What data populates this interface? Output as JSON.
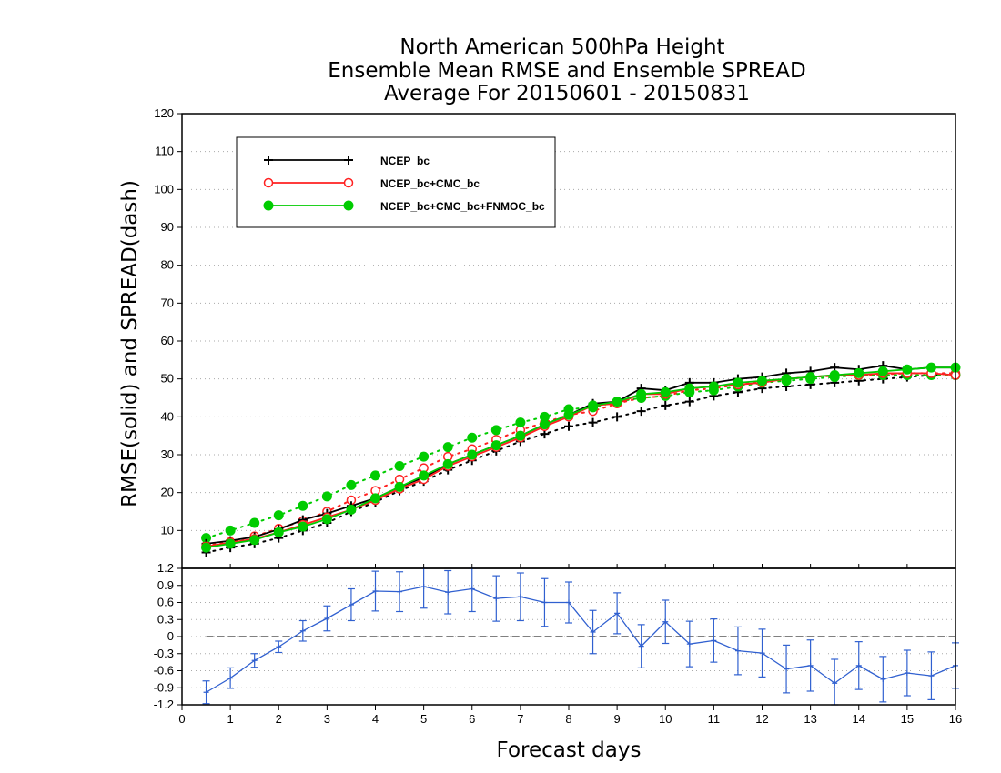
{
  "chart_data": [
    {
      "type": "line",
      "title_lines": [
        "North American 500hPa Height",
        "Ensemble Mean RMSE and Ensemble SPREAD",
        "Average For 20150601 - 20150831"
      ],
      "ylabel": "RMSE(solid) and SPREAD(dash)",
      "xlabel": "Forecast days",
      "xlim": [
        0,
        16
      ],
      "ylim": [
        0,
        120
      ],
      "yticks": [
        "10",
        "20",
        "30",
        "40",
        "50",
        "60",
        "70",
        "80",
        "90",
        "100",
        "110",
        "120"
      ],
      "grid": true,
      "legend_position": "top-left",
      "x": [
        0.5,
        1,
        1.5,
        2,
        2.5,
        3,
        3.5,
        4,
        4.5,
        5,
        5.5,
        6,
        6.5,
        7,
        7.5,
        8,
        8.5,
        9,
        9.5,
        10,
        10.5,
        11,
        11.5,
        12,
        12.5,
        13,
        13.5,
        14,
        14.5,
        15,
        15.5,
        16
      ],
      "series": [
        {
          "name": "NCEP_bc",
          "color": "#000000",
          "marker": "plus",
          "rmse": [
            6.5,
            7.3,
            8.3,
            10.3,
            12.8,
            14.5,
            16.5,
            18.5,
            21.5,
            24.0,
            27.5,
            30.0,
            32.5,
            35.0,
            38.0,
            40.5,
            43.5,
            44.0,
            47.5,
            47.0,
            49.0,
            49.0,
            50.0,
            50.5,
            51.5,
            52.0,
            53.0,
            52.5,
            53.5,
            52.5,
            53.0,
            53.0
          ],
          "spread": [
            4.2,
            5.5,
            6.5,
            8.0,
            10.0,
            12.0,
            15.0,
            17.5,
            20.5,
            23.0,
            26.0,
            28.5,
            31.0,
            33.5,
            35.5,
            37.5,
            38.5,
            40.0,
            41.5,
            43.0,
            44.0,
            45.5,
            46.5,
            47.5,
            48.0,
            48.5,
            49.0,
            49.5,
            50.0,
            50.5,
            51.0,
            51.5
          ]
        },
        {
          "name": "NCEP_bc+CMC_bc",
          "color": "#ff2020",
          "marker": "open-circle",
          "rmse": [
            5.8,
            6.8,
            7.8,
            9.5,
            11.5,
            13.5,
            15.5,
            18.0,
            21.0,
            23.5,
            27.0,
            29.5,
            32.0,
            34.5,
            37.5,
            40.0,
            43.0,
            43.5,
            46.0,
            46.0,
            47.5,
            48.0,
            48.5,
            49.0,
            50.0,
            50.5,
            51.0,
            51.0,
            51.5,
            51.5,
            51.5,
            51.0
          ],
          "spread": [
            6.0,
            7.0,
            8.5,
            10.5,
            12.5,
            15.0,
            18.0,
            20.5,
            23.5,
            26.5,
            29.5,
            31.5,
            34.0,
            36.5,
            38.5,
            40.5,
            41.5,
            43.5,
            45.0,
            45.5,
            47.0,
            47.5,
            48.5,
            49.5,
            50.0,
            50.5,
            50.8,
            51.0,
            51.2,
            51.5,
            51.5,
            51.5
          ]
        },
        {
          "name": "NCEP_bc+CMC_bc+FNMOC_bc",
          "color": "#00cc00",
          "marker": "filled-circle",
          "rmse": [
            5.5,
            6.5,
            7.5,
            9.5,
            11.0,
            13.0,
            15.5,
            18.5,
            21.5,
            24.5,
            27.5,
            30.0,
            32.5,
            35.0,
            38.0,
            40.5,
            43.0,
            44.0,
            46.0,
            46.5,
            47.5,
            48.0,
            49.0,
            49.5,
            50.0,
            50.5,
            51.0,
            51.5,
            52.0,
            52.5,
            53.0,
            53.0
          ],
          "spread": [
            8.0,
            10.0,
            12.0,
            14.0,
            16.5,
            19.0,
            22.0,
            24.5,
            27.0,
            29.5,
            32.0,
            34.5,
            36.5,
            38.5,
            40.0,
            42.0,
            42.5,
            44.0,
            45.0,
            45.5,
            46.5,
            47.0,
            48.0,
            49.0,
            49.5,
            50.0,
            50.5,
            51.0,
            51.0,
            51.0,
            51.0,
            51.0
          ]
        }
      ],
      "legend": [
        "NCEP_bc",
        "NCEP_bc+CMC_bc",
        "NCEP_bc+CMC_bc+FNMOC_bc"
      ]
    },
    {
      "type": "line",
      "xlim": [
        0,
        16
      ],
      "ylim": [
        -1.2,
        1.2
      ],
      "xticks": [
        "0",
        "1",
        "2",
        "3",
        "4",
        "5",
        "6",
        "7",
        "8",
        "9",
        "10",
        "11",
        "12",
        "13",
        "14",
        "15",
        "16"
      ],
      "yticks": [
        "1.2",
        "0.9",
        "0.6",
        "0.3",
        "0",
        "-0.3",
        "-0.6",
        "-0.9",
        "-1.2"
      ],
      "ytick_values": [
        1.2,
        0.9,
        0.6,
        0.3,
        0,
        -0.3,
        -0.6,
        -0.9,
        -1.2
      ],
      "grid": true,
      "series": [
        {
          "color": "#3060d0",
          "x": [
            0.5,
            1,
            1.5,
            2,
            2.5,
            3,
            3.5,
            4,
            4.5,
            5,
            5.5,
            6,
            6.5,
            7,
            7.5,
            8,
            8.5,
            9,
            9.5,
            10,
            10.5,
            11,
            11.5,
            12,
            12.5,
            13,
            13.5,
            14,
            14.5,
            15,
            15.5,
            16
          ],
          "values": [
            -0.98,
            -0.73,
            -0.42,
            -0.18,
            0.1,
            0.32,
            0.56,
            0.8,
            0.79,
            0.88,
            0.78,
            0.84,
            0.67,
            0.7,
            0.6,
            0.6,
            0.08,
            0.41,
            -0.17,
            0.26,
            -0.13,
            -0.07,
            -0.25,
            -0.29,
            -0.57,
            -0.51,
            -0.82,
            -0.51,
            -0.75,
            -0.64,
            -0.69,
            -0.51
          ],
          "error": [
            0.2,
            0.18,
            0.12,
            0.1,
            0.18,
            0.22,
            0.28,
            0.35,
            0.35,
            0.38,
            0.38,
            0.4,
            0.4,
            0.42,
            0.42,
            0.36,
            0.38,
            0.36,
            0.38,
            0.38,
            0.4,
            0.38,
            0.42,
            0.42,
            0.42,
            0.45,
            0.42,
            0.42,
            0.4,
            0.4,
            0.42,
            0.4
          ]
        }
      ],
      "reference_line": 0
    }
  ]
}
